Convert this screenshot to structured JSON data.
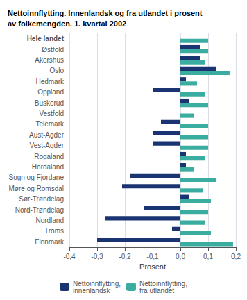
{
  "chart_data": {
    "type": "bar",
    "orientation": "horizontal",
    "title": "Nettoinnflytting. Innenlandsk og fra utlandet i prosent\nav folkemengden. 1. kvartal 2002",
    "categories": [
      "Hele landet",
      "Østfold",
      "Akershus",
      "Oslo",
      "Hedmark",
      "Oppland",
      "Buskerud",
      "Vestfold",
      "Telemark",
      "Aust-Agder",
      "Vest-Agder",
      "Rogaland",
      "Hordaland",
      "Sogn og Fjordane",
      "Møre og Romsdal",
      "Sør-Trøndelag",
      "Nord-Trøndelag",
      "Nordland",
      "Troms",
      "Finnmark"
    ],
    "series": [
      {
        "name": "Nettoinnflytting,\ninnenlandsk",
        "color": "#1a3472",
        "values": [
          0.0,
          0.07,
          0.07,
          0.13,
          0.02,
          -0.1,
          0.03,
          0.0,
          -0.07,
          -0.1,
          -0.1,
          0.02,
          0.02,
          -0.18,
          -0.21,
          0.03,
          -0.13,
          -0.27,
          -0.03,
          -0.3
        ]
      },
      {
        "name": "Nettoinnflytting,\nfra utlandet",
        "color": "#3aada0",
        "values": [
          0.1,
          0.1,
          0.09,
          0.18,
          0.06,
          0.09,
          0.1,
          0.05,
          0.1,
          0.1,
          0.1,
          0.09,
          0.05,
          0.13,
          0.08,
          0.11,
          0.1,
          0.09,
          0.11,
          0.19
        ]
      }
    ],
    "xlabel": "Prosent",
    "xlim": [
      -0.4,
      0.2
    ],
    "xticks": [
      {
        "value": -0.4,
        "label": "-0,4"
      },
      {
        "value": -0.3,
        "label": "-0,3"
      },
      {
        "value": -0.2,
        "label": "-0,2"
      },
      {
        "value": -0.1,
        "label": "-0,1"
      },
      {
        "value": 0.0,
        "label": "0,0"
      },
      {
        "value": 0.1,
        "label": "0,1"
      },
      {
        "value": 0.2,
        "label": "0,2"
      }
    ],
    "grid": true,
    "legend": "bottom"
  }
}
